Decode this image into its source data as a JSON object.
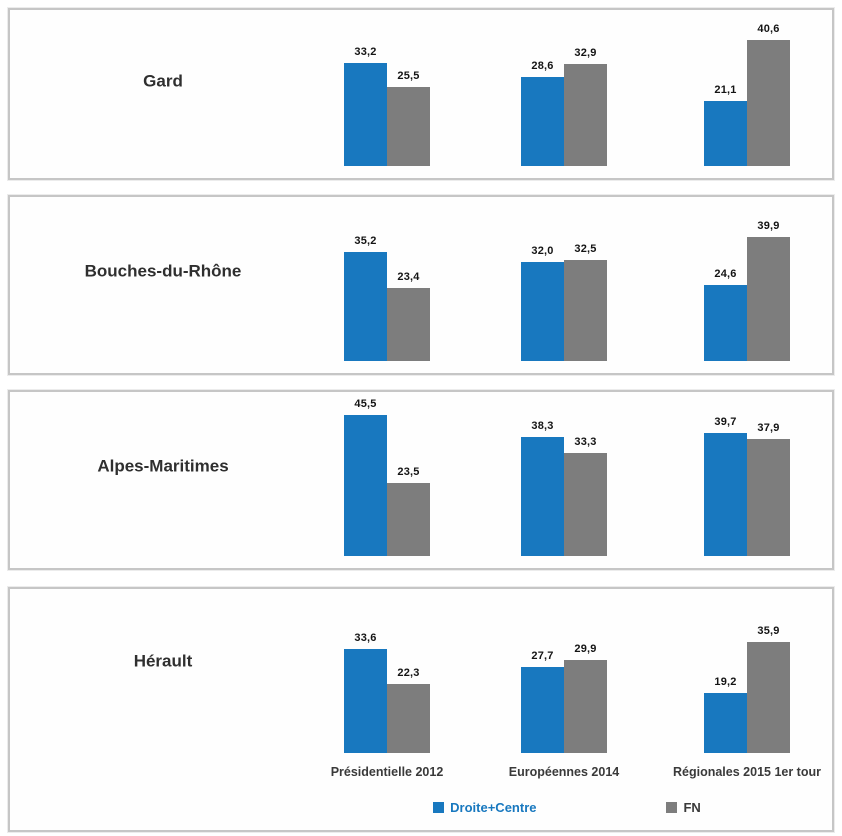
{
  "colors": {
    "droite_centre": "#1878bf",
    "fn": "#7d7d7d",
    "panel_border": "#c6c6c6",
    "value_text": "#141414",
    "legend_fn_text": "#3a3a3a"
  },
  "legend": {
    "items": [
      {
        "name": "Droite+Centre",
        "color": "#1878bf",
        "text_color": "#1878bf"
      },
      {
        "name": "FN",
        "color": "#7d7d7d",
        "text_color": "#3a3a3a"
      }
    ]
  },
  "chart_data": {
    "type": "bar",
    "categories": [
      "Présidentielle 2012",
      "Européennes 2014",
      "Régionales 2015 1er tour"
    ],
    "legend_entries": [
      "Droite+Centre",
      "FN"
    ],
    "legend_position": "bottom",
    "grid": false,
    "value_format": "decimal-comma",
    "ylim": [
      0,
      50
    ],
    "panels": [
      {
        "region": "Gard",
        "series": [
          {
            "name": "Droite+Centre",
            "color": "#1878bf",
            "values": [
              33.2,
              28.6,
              21.1
            ],
            "labels": [
              "33,2",
              "28,6",
              "21,1"
            ]
          },
          {
            "name": "FN",
            "color": "#7d7d7d",
            "values": [
              25.5,
              32.9,
              40.6
            ],
            "labels": [
              "25,5",
              "32,9",
              "40,6"
            ]
          }
        ]
      },
      {
        "region": "Bouches-du-Rhône",
        "series": [
          {
            "name": "Droite+Centre",
            "color": "#1878bf",
            "values": [
              35.2,
              32.0,
              24.6
            ],
            "labels": [
              "35,2",
              "32,0",
              "24,6"
            ]
          },
          {
            "name": "FN",
            "color": "#7d7d7d",
            "values": [
              23.4,
              32.5,
              39.9
            ],
            "labels": [
              "23,4",
              "32,5",
              "39,9"
            ]
          }
        ]
      },
      {
        "region": "Alpes-Maritimes",
        "series": [
          {
            "name": "Droite+Centre",
            "color": "#1878bf",
            "values": [
              45.5,
              38.3,
              39.7
            ],
            "labels": [
              "45,5",
              "38,3",
              "39,7"
            ]
          },
          {
            "name": "FN",
            "color": "#7d7d7d",
            "values": [
              23.5,
              33.3,
              37.9
            ],
            "labels": [
              "23,5",
              "33,3",
              "37,9"
            ]
          }
        ]
      },
      {
        "region": "Hérault",
        "series": [
          {
            "name": "Droite+Centre",
            "color": "#1878bf",
            "values": [
              33.6,
              27.7,
              19.2
            ],
            "labels": [
              "33,6",
              "27,7",
              "19,2"
            ]
          },
          {
            "name": "FN",
            "color": "#7d7d7d",
            "values": [
              22.3,
              29.9,
              35.9
            ],
            "labels": [
              "22,3",
              "29,9",
              "35,9"
            ]
          }
        ]
      }
    ]
  }
}
